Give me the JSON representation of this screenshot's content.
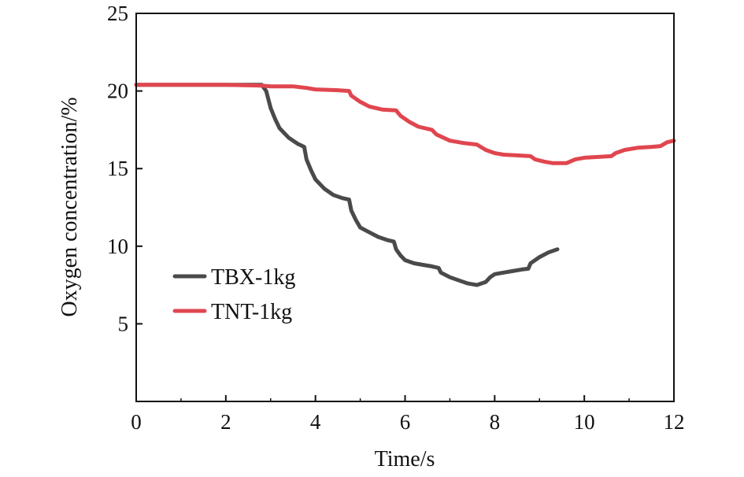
{
  "chart_data": {
    "type": "line",
    "title": "",
    "xlabel": "Time/s",
    "ylabel": "Oxygen concentration/%",
    "xlim": [
      0,
      12
    ],
    "ylim": [
      0,
      25
    ],
    "x_ticks": [
      0,
      2,
      4,
      6,
      8,
      10,
      12
    ],
    "y_ticks": [
      5,
      10,
      15,
      20,
      25
    ],
    "x_tick_labels": [
      "0",
      "2",
      "4",
      "6",
      "8",
      "10",
      "12"
    ],
    "y_tick_labels": [
      "5",
      "10",
      "15",
      "20",
      "25"
    ],
    "grid": false,
    "legend_position": "left-middle",
    "series": [
      {
        "name": "TBX-1kg",
        "color": "#4a4a4a",
        "x": [
          0,
          1,
          2,
          2.8,
          2.9,
          3.0,
          3.1,
          3.2,
          3.4,
          3.6,
          3.75,
          3.8,
          3.9,
          4.0,
          4.2,
          4.4,
          4.6,
          4.75,
          4.8,
          4.9,
          5.0,
          5.2,
          5.4,
          5.6,
          5.75,
          5.8,
          5.9,
          6.0,
          6.2,
          6.4,
          6.6,
          6.75,
          6.8,
          7.0,
          7.2,
          7.4,
          7.6,
          7.8,
          7.9,
          8.0,
          8.2,
          8.4,
          8.6,
          8.75,
          8.8,
          9.0,
          9.2,
          9.4
        ],
        "y": [
          20.4,
          20.4,
          20.4,
          20.4,
          20.0,
          18.9,
          18.2,
          17.6,
          17.0,
          16.6,
          16.4,
          15.6,
          14.9,
          14.3,
          13.7,
          13.3,
          13.1,
          13.0,
          12.3,
          11.7,
          11.2,
          10.9,
          10.6,
          10.4,
          10.3,
          9.8,
          9.4,
          9.1,
          8.9,
          8.8,
          8.7,
          8.6,
          8.3,
          8.0,
          7.8,
          7.6,
          7.5,
          7.7,
          8.0,
          8.2,
          8.3,
          8.4,
          8.5,
          8.55,
          8.9,
          9.3,
          9.6,
          9.8
        ]
      },
      {
        "name": "TNT-1kg",
        "color": "#e0464f",
        "x": [
          0,
          1,
          2,
          2.8,
          3.0,
          3.5,
          3.8,
          4.0,
          4.5,
          4.75,
          4.8,
          5.0,
          5.2,
          5.5,
          5.8,
          5.9,
          6.1,
          6.3,
          6.6,
          6.7,
          7.0,
          7.3,
          7.6,
          7.8,
          8.0,
          8.2,
          8.5,
          8.8,
          8.9,
          9.1,
          9.3,
          9.6,
          9.8,
          10.0,
          10.3,
          10.6,
          10.7,
          10.9,
          11.2,
          11.5,
          11.7,
          11.85,
          12.0
        ],
        "y": [
          20.4,
          20.4,
          20.4,
          20.35,
          20.3,
          20.3,
          20.2,
          20.1,
          20.05,
          20.0,
          19.7,
          19.3,
          19.0,
          18.8,
          18.75,
          18.4,
          18.0,
          17.7,
          17.5,
          17.2,
          16.8,
          16.65,
          16.55,
          16.2,
          16.0,
          15.9,
          15.85,
          15.8,
          15.6,
          15.45,
          15.35,
          15.35,
          15.6,
          15.7,
          15.75,
          15.8,
          16.0,
          16.2,
          16.35,
          16.4,
          16.45,
          16.7,
          16.8
        ]
      }
    ]
  }
}
